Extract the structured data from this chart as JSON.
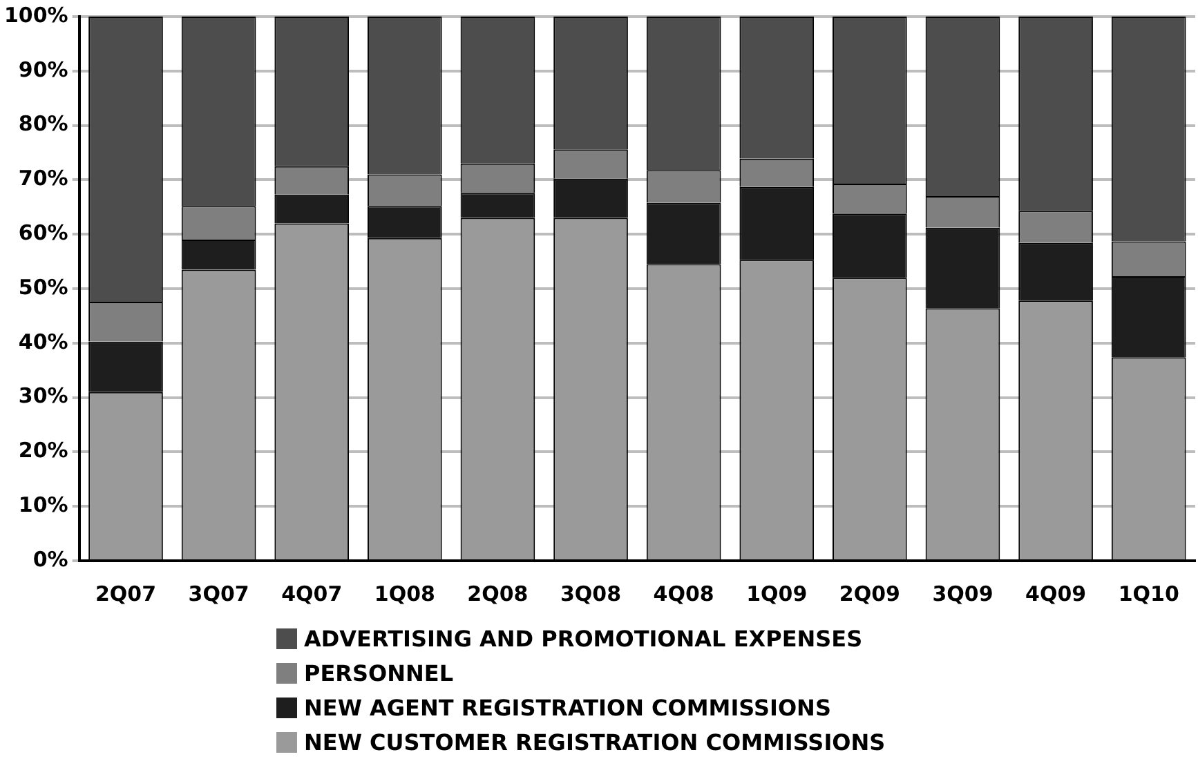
{
  "chart_data": {
    "type": "bar",
    "stacked": true,
    "categories": [
      "2Q07",
      "3Q07",
      "4Q07",
      "1Q08",
      "2Q08",
      "3Q08",
      "4Q08",
      "1Q09",
      "2Q09",
      "3Q09",
      "4Q09",
      "1Q10"
    ],
    "series": [
      {
        "name": "NEW CUSTOMER REGISTRATION COMMISSIONS",
        "color": "#9a9a9a",
        "values": [
          31,
          53.5,
          62,
          59.3,
          63,
          63,
          54.5,
          55.3,
          52,
          46.4,
          47.8,
          37.4
        ]
      },
      {
        "name": "NEW AGENT REGISTRATION COMMISSIONS",
        "color": "#1e1e1e",
        "values": [
          9.3,
          5.5,
          5.3,
          5.9,
          4.6,
          7.2,
          11.3,
          13.4,
          11.8,
          14.8,
          10.6,
          14.9
        ]
      },
      {
        "name": "PERSONNEL",
        "color": "#7f7f7f",
        "values": [
          7.3,
          6.2,
          5.2,
          5.8,
          5.4,
          5.4,
          6,
          5.2,
          5.5,
          5.8,
          5.9,
          6.4
        ]
      },
      {
        "name": "ADVERTISING AND PROMOTIONAL EXPENSES",
        "color": "#4d4d4d",
        "values": [
          52.4,
          34.8,
          27.5,
          29,
          27,
          24.4,
          28.2,
          26.1,
          30.7,
          33,
          35.7,
          41.3
        ]
      }
    ],
    "ylim": [
      0,
      100
    ],
    "yticks": [
      {
        "value": 0,
        "label": "0%"
      },
      {
        "value": 10,
        "label": "10%"
      },
      {
        "value": 20,
        "label": "20%"
      },
      {
        "value": 30,
        "label": "30%"
      },
      {
        "value": 40,
        "label": "40%"
      },
      {
        "value": 50,
        "label": "50%"
      },
      {
        "value": 60,
        "label": "60%"
      },
      {
        "value": 70,
        "label": "70%"
      },
      {
        "value": 80,
        "label": "80%"
      },
      {
        "value": 90,
        "label": "90%"
      },
      {
        "value": 100,
        "label": "100%"
      }
    ],
    "grid": "y",
    "legend": "bottom"
  }
}
